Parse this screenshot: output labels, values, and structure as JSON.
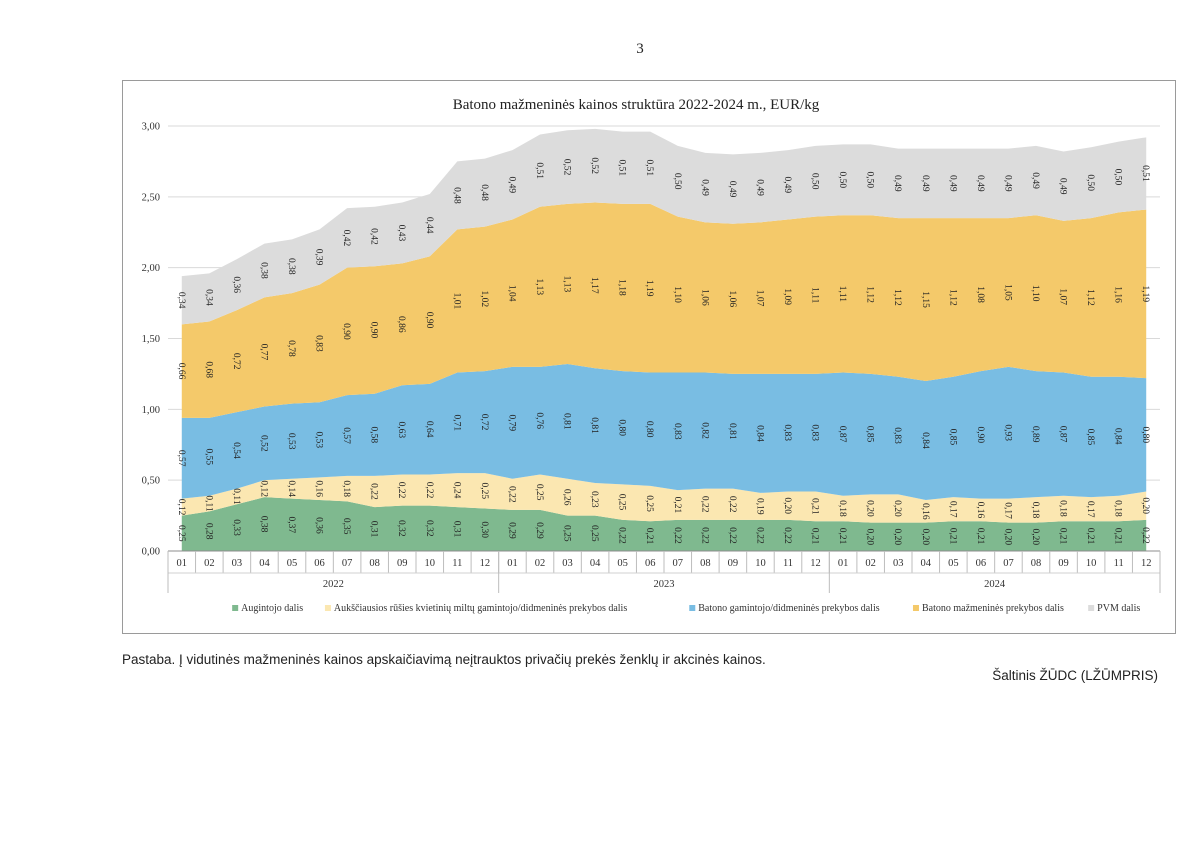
{
  "page": {
    "number": "3"
  },
  "note": "Pastaba. Į vidutinės mažmeninės kainos apskaičiavimą neįtrauktos privačių prekės ženklų ir akcinės kainos.",
  "source": "Šaltinis ŽŪDC (LŽŪMPRIS)",
  "chart_data": {
    "type": "area",
    "stacked": true,
    "title": "Batono mažmeninės  kainos struktūra 2022-2024 m., EUR/kg",
    "ylim": [
      0,
      3
    ],
    "yticks": [
      "0,00",
      "0,50",
      "1,00",
      "1,50",
      "2,00",
      "2,50",
      "3,00"
    ],
    "ytick_values": [
      0,
      0.5,
      1,
      1.5,
      2,
      2.5,
      3
    ],
    "months": [
      "01",
      "02",
      "03",
      "04",
      "05",
      "06",
      "07",
      "08",
      "09",
      "10",
      "11",
      "12",
      "01",
      "02",
      "03",
      "04",
      "05",
      "06",
      "07",
      "08",
      "09",
      "10",
      "11",
      "12",
      "01",
      "02",
      "03",
      "04",
      "05",
      "06",
      "07",
      "08",
      "09",
      "10",
      "11",
      "12"
    ],
    "years": [
      "2022",
      "2023",
      "2024"
    ],
    "legend_position": "bottom",
    "series": [
      {
        "name": "Augintojo dalis",
        "color": "#7fb98f",
        "values": [
          0.25,
          0.28,
          0.33,
          0.38,
          0.37,
          0.36,
          0.35,
          0.31,
          0.32,
          0.32,
          0.31,
          0.3,
          0.29,
          0.29,
          0.25,
          0.25,
          0.22,
          0.21,
          0.22,
          0.22,
          0.22,
          0.22,
          0.22,
          0.21,
          0.21,
          0.2,
          0.2,
          0.2,
          0.21,
          0.21,
          0.2,
          0.2,
          0.21,
          0.21,
          0.21,
          0.22
        ],
        "labels": [
          "0,25",
          "0,28",
          "0,33",
          "0,38",
          "0,37",
          "0,36",
          "0,35",
          "0,31",
          "0,32",
          "0,32",
          "0,31",
          "0,30",
          "0,29",
          "0,29",
          "0,25",
          "0,25",
          "0,22",
          "0,21",
          "0,22",
          "0,22",
          "0,22",
          "0,22",
          "0,22",
          "0,21",
          "0,21",
          "0,20",
          "0,20",
          "0,20",
          "0,21",
          "0,21",
          "0,20",
          "0,20",
          "0,21",
          "0,21",
          "0,21",
          "0,22"
        ]
      },
      {
        "name": "Aukščiausios rūšies kvietinių miltų gamintojo/didmeninės prekybos dalis",
        "color": "#fbe7b1",
        "values": [
          0.12,
          0.11,
          0.11,
          0.12,
          0.14,
          0.16,
          0.18,
          0.22,
          0.22,
          0.22,
          0.24,
          0.25,
          0.22,
          0.25,
          0.26,
          0.23,
          0.25,
          0.25,
          0.21,
          0.22,
          0.22,
          0.19,
          0.2,
          0.21,
          0.18,
          0.2,
          0.2,
          0.16,
          0.17,
          0.16,
          0.17,
          0.18,
          0.18,
          0.17,
          0.18,
          0.2
        ],
        "labels": [
          "0,12",
          "0,11",
          "0,11",
          "0,12",
          "0,14",
          "0,16",
          "0,18",
          "0,22",
          "0,22",
          "0,22",
          "0,24",
          "0,25",
          "0,22",
          "0,25",
          "0,26",
          "0,23",
          "0,25",
          "0,25",
          "0,21",
          "0,22",
          "0,22",
          "0,19",
          "0,20",
          "0,21",
          "0,18",
          "0,20",
          "0,20",
          "0,16",
          "0,17",
          "0,16",
          "0,17",
          "0,18",
          "0,18",
          "0,17",
          "0,18",
          "0,20"
        ]
      },
      {
        "name": "Batono gamintojo/didmeninės prekybos dalis",
        "color": "#79bde3",
        "values": [
          0.57,
          0.55,
          0.54,
          0.52,
          0.53,
          0.53,
          0.57,
          0.58,
          0.63,
          0.64,
          0.71,
          0.72,
          0.79,
          0.76,
          0.81,
          0.81,
          0.8,
          0.8,
          0.83,
          0.82,
          0.81,
          0.84,
          0.83,
          0.83,
          0.87,
          0.85,
          0.83,
          0.84,
          0.85,
          0.9,
          0.93,
          0.89,
          0.87,
          0.85,
          0.84,
          0.8
        ],
        "labels": [
          "0,57",
          "0,55",
          "0,54",
          "0,52",
          "0,53",
          "0,53",
          "0,57",
          "0,58",
          "0,63",
          "0,64",
          "0,71",
          "0,72",
          "0,79",
          "0,76",
          "0,81",
          "0,81",
          "0,80",
          "0,80",
          "0,83",
          "0,82",
          "0,81",
          "0,84",
          "0,83",
          "0,83",
          "0,87",
          "0,85",
          "0,83",
          "0,84",
          "0,85",
          "0,90",
          "0,93",
          "0,89",
          "0,87",
          "0,85",
          "0,84",
          "0,80"
        ]
      },
      {
        "name": "Batono mažmeninės prekybos dalis",
        "color": "#f4c96a",
        "values": [
          0.66,
          0.68,
          0.72,
          0.77,
          0.78,
          0.83,
          0.9,
          0.9,
          0.86,
          0.9,
          1.01,
          1.02,
          1.04,
          1.13,
          1.13,
          1.17,
          1.18,
          1.19,
          1.1,
          1.06,
          1.06,
          1.07,
          1.09,
          1.11,
          1.11,
          1.12,
          1.12,
          1.15,
          1.12,
          1.08,
          1.05,
          1.1,
          1.07,
          1.12,
          1.16,
          1.19
        ],
        "labels": [
          "0,66",
          "0,68",
          "0,72",
          "0,77",
          "0,78",
          "0,83",
          "0,90",
          "0,90",
          "0,86",
          "0,90",
          "1,01",
          "1,02",
          "1,04",
          "1,13",
          "1,13",
          "1,17",
          "1,18",
          "1,19",
          "1,10",
          "1,06",
          "1,06",
          "1,07",
          "1,09",
          "1,11",
          "1,11",
          "1,12",
          "1,12",
          "1,15",
          "1,12",
          "1,08",
          "1,05",
          "1,10",
          "1,07",
          "1,12",
          "1,16",
          "1,19"
        ]
      },
      {
        "name": "PVM dalis",
        "color": "#dcdcdc",
        "values": [
          0.34,
          0.34,
          0.36,
          0.38,
          0.38,
          0.39,
          0.42,
          0.42,
          0.43,
          0.44,
          0.48,
          0.48,
          0.49,
          0.51,
          0.52,
          0.52,
          0.51,
          0.51,
          0.5,
          0.49,
          0.49,
          0.49,
          0.49,
          0.5,
          0.5,
          0.5,
          0.49,
          0.49,
          0.49,
          0.49,
          0.49,
          0.49,
          0.49,
          0.5,
          0.5,
          0.51
        ],
        "labels": [
          "0,34",
          "0,34",
          "0,36",
          "0,38",
          "0,38",
          "0,39",
          "0,42",
          "0,42",
          "0,43",
          "0,44",
          "0,48",
          "0,48",
          "0,49",
          "0,51",
          "0,52",
          "0,52",
          "0,51",
          "0,51",
          "0,50",
          "0,49",
          "0,49",
          "0,49",
          "0,49",
          "0,50",
          "0,50",
          "0,50",
          "0,49",
          "0,49",
          "0,49",
          "0,49",
          "0,49",
          "0,49",
          "0,49",
          "0,50",
          "0,50",
          "0,51"
        ]
      }
    ]
  }
}
